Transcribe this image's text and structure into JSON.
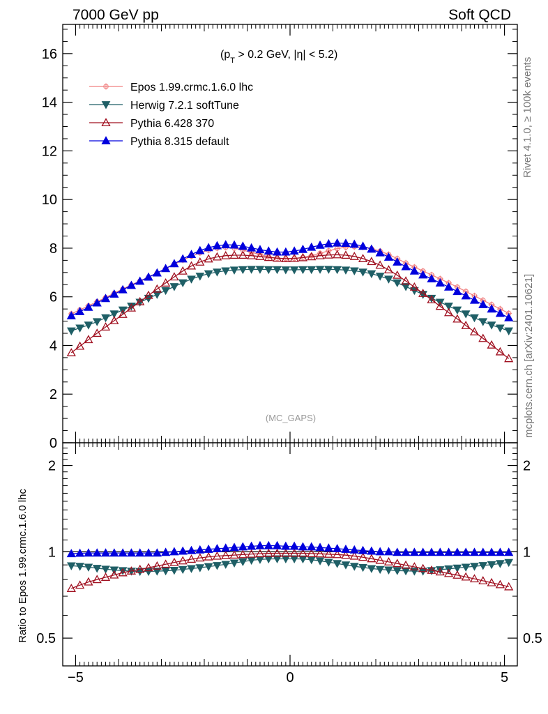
{
  "chart_data": {
    "type": "line",
    "header_left": "7000 GeV pp",
    "header_right": "Soft QCD",
    "cut_label": {
      "p": "(p",
      "sub": "T",
      "rest": " > 0.2 GeV, |η| < 5.2)"
    },
    "analysis_tag": "(MC_GAPS)",
    "side_label_top": "Rivet 4.1.0, ≥ 100k events",
    "side_label_bottom": "mcplots.cern.ch [arXiv:2401.10621]",
    "main": {
      "xlim": [
        -5.3,
        5.3
      ],
      "ylim": [
        0,
        17.2
      ],
      "yticks_major": [
        0,
        2,
        4,
        6,
        8,
        10,
        12,
        14,
        16
      ],
      "ytick_labels": [
        "0",
        "2",
        "4",
        "6",
        "8",
        "10",
        "12",
        "14",
        "16"
      ]
    },
    "ratio": {
      "ylabel": "Ratio to Epos 1.99.crmc.1.6.0 lhc",
      "yscale": "log",
      "ylim": [
        0.4,
        2.4
      ],
      "yticks_major": [
        0.5,
        1,
        2
      ],
      "ytick_labels": [
        "0.5",
        "1",
        "2"
      ],
      "reference_line": 1
    },
    "xticks_major": [
      -5,
      0,
      5
    ],
    "xtick_labels": [
      "−5",
      "0",
      "5"
    ],
    "x": [
      -5.1,
      -4.9,
      -4.7,
      -4.5,
      -4.3,
      -4.1,
      -3.9,
      -3.7,
      -3.5,
      -3.3,
      -3.1,
      -2.9,
      -2.7,
      -2.5,
      -2.3,
      -2.1,
      -1.9,
      -1.7,
      -1.5,
      -1.3,
      -1.1,
      -0.9,
      -0.7,
      -0.5,
      -0.3,
      -0.1,
      0.1,
      0.3,
      0.5,
      0.7,
      0.9,
      1.1,
      1.3,
      1.5,
      1.7,
      1.9,
      2.1,
      2.3,
      2.5,
      2.7,
      2.9,
      3.1,
      3.3,
      3.5,
      3.7,
      3.9,
      4.1,
      4.3,
      4.5,
      4.7,
      4.9,
      5.1
    ],
    "series": [
      {
        "name": "Epos 1.99.crmc.1.6.0 lhc",
        "color": "#f08080",
        "marker": "crossed-circle-open",
        "values": [
          5.3,
          5.46,
          5.63,
          5.8,
          5.97,
          6.15,
          6.32,
          6.49,
          6.65,
          6.81,
          6.98,
          7.16,
          7.34,
          7.51,
          7.67,
          7.81,
          7.92,
          8.0,
          8.03,
          8.0,
          7.92,
          7.83,
          7.74,
          7.65,
          7.58,
          7.57,
          7.58,
          7.62,
          7.69,
          7.79,
          7.89,
          7.98,
          8.04,
          8.06,
          8.04,
          7.98,
          7.88,
          7.74,
          7.57,
          7.39,
          7.22,
          7.06,
          6.9,
          6.74,
          6.57,
          6.4,
          6.22,
          6.04,
          5.86,
          5.68,
          5.5,
          5.32
        ]
      },
      {
        "name": "Herwig 7.2.1 softTune",
        "color": "#1f5f66",
        "marker": "triangle-down-filled",
        "values": [
          4.6,
          4.72,
          4.84,
          4.98,
          5.14,
          5.3,
          5.46,
          5.62,
          5.78,
          5.94,
          6.1,
          6.26,
          6.42,
          6.58,
          6.73,
          6.85,
          6.95,
          7.02,
          7.07,
          7.1,
          7.12,
          7.13,
          7.13,
          7.12,
          7.12,
          7.11,
          7.11,
          7.12,
          7.12,
          7.13,
          7.13,
          7.12,
          7.1,
          7.07,
          7.02,
          6.95,
          6.85,
          6.73,
          6.58,
          6.42,
          6.26,
          6.1,
          5.94,
          5.78,
          5.62,
          5.46,
          5.3,
          5.14,
          4.98,
          4.84,
          4.72,
          4.6
        ]
      },
      {
        "name": "Pythia 6.428 370",
        "color": "#a01020",
        "marker": "triangle-up-open",
        "values": [
          3.7,
          3.97,
          4.24,
          4.5,
          4.76,
          5.02,
          5.28,
          5.54,
          5.8,
          6.06,
          6.32,
          6.57,
          6.82,
          7.06,
          7.27,
          7.43,
          7.56,
          7.64,
          7.69,
          7.71,
          7.71,
          7.69,
          7.66,
          7.62,
          7.59,
          7.57,
          7.58,
          7.61,
          7.65,
          7.69,
          7.72,
          7.73,
          7.71,
          7.66,
          7.57,
          7.45,
          7.3,
          7.11,
          6.89,
          6.65,
          6.4,
          6.14,
          5.88,
          5.61,
          5.35,
          5.09,
          4.82,
          4.56,
          4.29,
          4.02,
          3.74,
          3.46
        ]
      },
      {
        "name": "Pythia 8.315 default",
        "color": "#0000dd",
        "marker": "triangle-up-filled",
        "values": [
          5.22,
          5.39,
          5.57,
          5.75,
          5.93,
          6.11,
          6.29,
          6.47,
          6.64,
          6.81,
          6.98,
          7.16,
          7.36,
          7.56,
          7.74,
          7.9,
          8.02,
          8.1,
          8.14,
          8.13,
          8.08,
          8.01,
          7.94,
          7.88,
          7.84,
          7.84,
          7.88,
          7.95,
          8.04,
          8.12,
          8.18,
          8.21,
          8.2,
          8.16,
          8.08,
          7.96,
          7.81,
          7.63,
          7.43,
          7.24,
          7.06,
          6.9,
          6.74,
          6.57,
          6.4,
          6.22,
          6.04,
          5.86,
          5.68,
          5.5,
          5.32,
          5.14
        ]
      }
    ],
    "ratios": [
      {
        "name": "Herwig 7.2.1 softTune",
        "values": [
          0.894,
          0.89,
          0.884,
          0.876,
          0.87,
          0.864,
          0.86,
          0.856,
          0.854,
          0.854,
          0.856,
          0.858,
          0.862,
          0.868,
          0.874,
          0.88,
          0.888,
          0.896,
          0.904,
          0.914,
          0.924,
          0.934,
          0.94,
          0.944,
          0.945,
          0.945,
          0.945,
          0.944,
          0.938,
          0.93,
          0.92,
          0.91,
          0.9,
          0.89,
          0.882,
          0.874,
          0.868,
          0.864,
          0.86,
          0.858,
          0.856,
          0.856,
          0.86,
          0.866,
          0.872,
          0.878,
          0.884,
          0.89,
          0.896,
          0.902,
          0.91,
          0.918
        ]
      },
      {
        "name": "Pythia 6.428 370",
        "values": [
          0.745,
          0.765,
          0.785,
          0.8,
          0.815,
          0.83,
          0.845,
          0.857,
          0.868,
          0.88,
          0.892,
          0.905,
          0.918,
          0.93,
          0.942,
          0.952,
          0.96,
          0.966,
          0.97,
          0.974,
          0.978,
          0.982,
          0.985,
          0.987,
          0.988,
          0.988,
          0.988,
          0.988,
          0.986,
          0.984,
          0.981,
          0.978,
          0.973,
          0.966,
          0.957,
          0.946,
          0.934,
          0.922,
          0.91,
          0.898,
          0.886,
          0.874,
          0.862,
          0.851,
          0.84,
          0.829,
          0.817,
          0.805,
          0.792,
          0.78,
          0.768,
          0.755
        ]
      },
      {
        "name": "Pythia 8.315 default",
        "values": [
          0.985,
          0.988,
          0.99,
          0.99,
          0.99,
          0.99,
          0.99,
          0.99,
          0.99,
          0.99,
          0.99,
          0.995,
          1.0,
          1.005,
          1.01,
          1.015,
          1.02,
          1.025,
          1.03,
          1.035,
          1.04,
          1.045,
          1.05,
          1.05,
          1.05,
          1.045,
          1.045,
          1.04,
          1.04,
          1.035,
          1.03,
          1.025,
          1.02,
          1.015,
          1.01,
          1.005,
          1.0,
          1.0,
          0.995,
          0.995,
          0.995,
          0.995,
          0.995,
          0.995,
          0.995,
          0.995,
          0.995,
          0.995,
          0.995,
          0.995,
          0.995,
          0.995
        ]
      }
    ]
  }
}
